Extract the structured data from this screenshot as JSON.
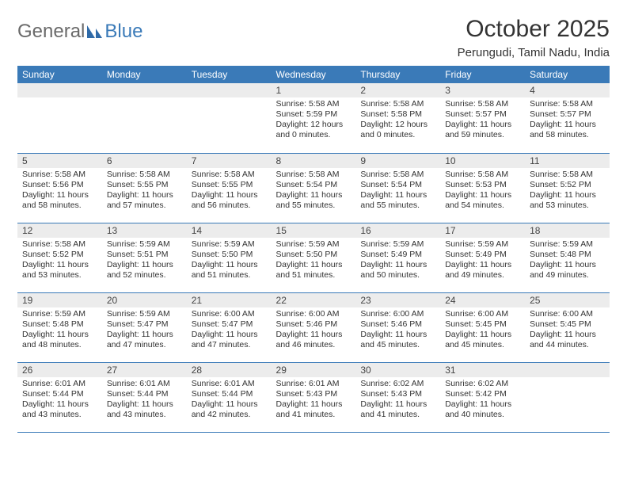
{
  "brand": {
    "part1": "General",
    "part2": "Blue"
  },
  "title": "October 2025",
  "location": "Perungudi, Tamil Nadu, India",
  "colors": {
    "header_bg": "#3a7ab8",
    "header_text": "#ffffff",
    "daynum_bg": "#ececec",
    "text": "#333333",
    "rule": "#3a7ab8",
    "logo_gray": "#6a6a6a",
    "logo_blue": "#3a7ab8",
    "page_bg": "#ffffff"
  },
  "typography": {
    "title_pt": 30,
    "location_pt": 15,
    "weekday_pt": 12,
    "daynum_pt": 12,
    "body_pt": 10.5,
    "family": "Arial"
  },
  "weekdays": [
    "Sunday",
    "Monday",
    "Tuesday",
    "Wednesday",
    "Thursday",
    "Friday",
    "Saturday"
  ],
  "weeks": [
    [
      null,
      null,
      null,
      {
        "n": "1",
        "sunrise": "Sunrise: 5:58 AM",
        "sunset": "Sunset: 5:59 PM",
        "day1": "Daylight: 12 hours",
        "day2": "and 0 minutes."
      },
      {
        "n": "2",
        "sunrise": "Sunrise: 5:58 AM",
        "sunset": "Sunset: 5:58 PM",
        "day1": "Daylight: 12 hours",
        "day2": "and 0 minutes."
      },
      {
        "n": "3",
        "sunrise": "Sunrise: 5:58 AM",
        "sunset": "Sunset: 5:57 PM",
        "day1": "Daylight: 11 hours",
        "day2": "and 59 minutes."
      },
      {
        "n": "4",
        "sunrise": "Sunrise: 5:58 AM",
        "sunset": "Sunset: 5:57 PM",
        "day1": "Daylight: 11 hours",
        "day2": "and 58 minutes."
      }
    ],
    [
      {
        "n": "5",
        "sunrise": "Sunrise: 5:58 AM",
        "sunset": "Sunset: 5:56 PM",
        "day1": "Daylight: 11 hours",
        "day2": "and 58 minutes."
      },
      {
        "n": "6",
        "sunrise": "Sunrise: 5:58 AM",
        "sunset": "Sunset: 5:55 PM",
        "day1": "Daylight: 11 hours",
        "day2": "and 57 minutes."
      },
      {
        "n": "7",
        "sunrise": "Sunrise: 5:58 AM",
        "sunset": "Sunset: 5:55 PM",
        "day1": "Daylight: 11 hours",
        "day2": "and 56 minutes."
      },
      {
        "n": "8",
        "sunrise": "Sunrise: 5:58 AM",
        "sunset": "Sunset: 5:54 PM",
        "day1": "Daylight: 11 hours",
        "day2": "and 55 minutes."
      },
      {
        "n": "9",
        "sunrise": "Sunrise: 5:58 AM",
        "sunset": "Sunset: 5:54 PM",
        "day1": "Daylight: 11 hours",
        "day2": "and 55 minutes."
      },
      {
        "n": "10",
        "sunrise": "Sunrise: 5:58 AM",
        "sunset": "Sunset: 5:53 PM",
        "day1": "Daylight: 11 hours",
        "day2": "and 54 minutes."
      },
      {
        "n": "11",
        "sunrise": "Sunrise: 5:58 AM",
        "sunset": "Sunset: 5:52 PM",
        "day1": "Daylight: 11 hours",
        "day2": "and 53 minutes."
      }
    ],
    [
      {
        "n": "12",
        "sunrise": "Sunrise: 5:58 AM",
        "sunset": "Sunset: 5:52 PM",
        "day1": "Daylight: 11 hours",
        "day2": "and 53 minutes."
      },
      {
        "n": "13",
        "sunrise": "Sunrise: 5:59 AM",
        "sunset": "Sunset: 5:51 PM",
        "day1": "Daylight: 11 hours",
        "day2": "and 52 minutes."
      },
      {
        "n": "14",
        "sunrise": "Sunrise: 5:59 AM",
        "sunset": "Sunset: 5:50 PM",
        "day1": "Daylight: 11 hours",
        "day2": "and 51 minutes."
      },
      {
        "n": "15",
        "sunrise": "Sunrise: 5:59 AM",
        "sunset": "Sunset: 5:50 PM",
        "day1": "Daylight: 11 hours",
        "day2": "and 51 minutes."
      },
      {
        "n": "16",
        "sunrise": "Sunrise: 5:59 AM",
        "sunset": "Sunset: 5:49 PM",
        "day1": "Daylight: 11 hours",
        "day2": "and 50 minutes."
      },
      {
        "n": "17",
        "sunrise": "Sunrise: 5:59 AM",
        "sunset": "Sunset: 5:49 PM",
        "day1": "Daylight: 11 hours",
        "day2": "and 49 minutes."
      },
      {
        "n": "18",
        "sunrise": "Sunrise: 5:59 AM",
        "sunset": "Sunset: 5:48 PM",
        "day1": "Daylight: 11 hours",
        "day2": "and 49 minutes."
      }
    ],
    [
      {
        "n": "19",
        "sunrise": "Sunrise: 5:59 AM",
        "sunset": "Sunset: 5:48 PM",
        "day1": "Daylight: 11 hours",
        "day2": "and 48 minutes."
      },
      {
        "n": "20",
        "sunrise": "Sunrise: 5:59 AM",
        "sunset": "Sunset: 5:47 PM",
        "day1": "Daylight: 11 hours",
        "day2": "and 47 minutes."
      },
      {
        "n": "21",
        "sunrise": "Sunrise: 6:00 AM",
        "sunset": "Sunset: 5:47 PM",
        "day1": "Daylight: 11 hours",
        "day2": "and 47 minutes."
      },
      {
        "n": "22",
        "sunrise": "Sunrise: 6:00 AM",
        "sunset": "Sunset: 5:46 PM",
        "day1": "Daylight: 11 hours",
        "day2": "and 46 minutes."
      },
      {
        "n": "23",
        "sunrise": "Sunrise: 6:00 AM",
        "sunset": "Sunset: 5:46 PM",
        "day1": "Daylight: 11 hours",
        "day2": "and 45 minutes."
      },
      {
        "n": "24",
        "sunrise": "Sunrise: 6:00 AM",
        "sunset": "Sunset: 5:45 PM",
        "day1": "Daylight: 11 hours",
        "day2": "and 45 minutes."
      },
      {
        "n": "25",
        "sunrise": "Sunrise: 6:00 AM",
        "sunset": "Sunset: 5:45 PM",
        "day1": "Daylight: 11 hours",
        "day2": "and 44 minutes."
      }
    ],
    [
      {
        "n": "26",
        "sunrise": "Sunrise: 6:01 AM",
        "sunset": "Sunset: 5:44 PM",
        "day1": "Daylight: 11 hours",
        "day2": "and 43 minutes."
      },
      {
        "n": "27",
        "sunrise": "Sunrise: 6:01 AM",
        "sunset": "Sunset: 5:44 PM",
        "day1": "Daylight: 11 hours",
        "day2": "and 43 minutes."
      },
      {
        "n": "28",
        "sunrise": "Sunrise: 6:01 AM",
        "sunset": "Sunset: 5:44 PM",
        "day1": "Daylight: 11 hours",
        "day2": "and 42 minutes."
      },
      {
        "n": "29",
        "sunrise": "Sunrise: 6:01 AM",
        "sunset": "Sunset: 5:43 PM",
        "day1": "Daylight: 11 hours",
        "day2": "and 41 minutes."
      },
      {
        "n": "30",
        "sunrise": "Sunrise: 6:02 AM",
        "sunset": "Sunset: 5:43 PM",
        "day1": "Daylight: 11 hours",
        "day2": "and 41 minutes."
      },
      {
        "n": "31",
        "sunrise": "Sunrise: 6:02 AM",
        "sunset": "Sunset: 5:42 PM",
        "day1": "Daylight: 11 hours",
        "day2": "and 40 minutes."
      },
      null
    ]
  ]
}
